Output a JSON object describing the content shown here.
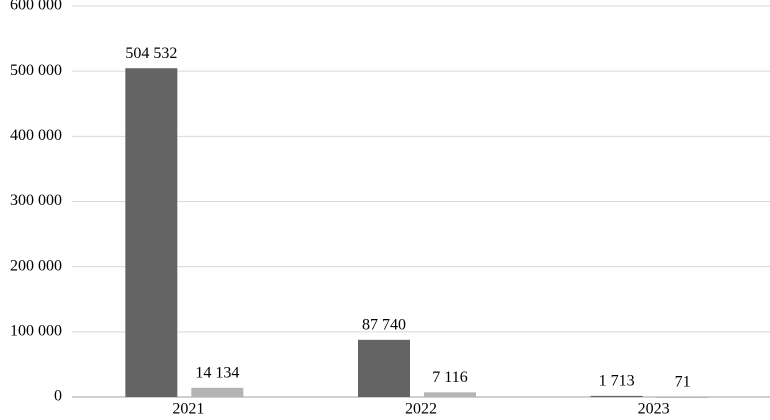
{
  "chart_data": {
    "type": "bar",
    "categories": [
      "2021",
      "2022",
      "2023"
    ],
    "series": [
      {
        "color": "#646464",
        "values": [
          504532,
          87740,
          1713
        ],
        "value_labels": [
          "504 532",
          "87 740",
          "1 713"
        ]
      },
      {
        "color": "#b4b4b4",
        "values": [
          14134,
          7116,
          71
        ],
        "value_labels": [
          "14 134",
          "7 116",
          "71"
        ]
      }
    ],
    "ylim": [
      0,
      600000
    ],
    "yticks": [
      0,
      {
        "value": 100000,
        "label": "100 000"
      },
      {
        "value": 200000,
        "label": "200 000"
      },
      {
        "value": 300000,
        "label": "300 000"
      },
      {
        "value": 400000,
        "label": "400 000"
      },
      {
        "value": 500000,
        "label": "500 000"
      },
      {
        "value": 600000,
        "label": "600 000"
      }
    ],
    "grid": true
  }
}
